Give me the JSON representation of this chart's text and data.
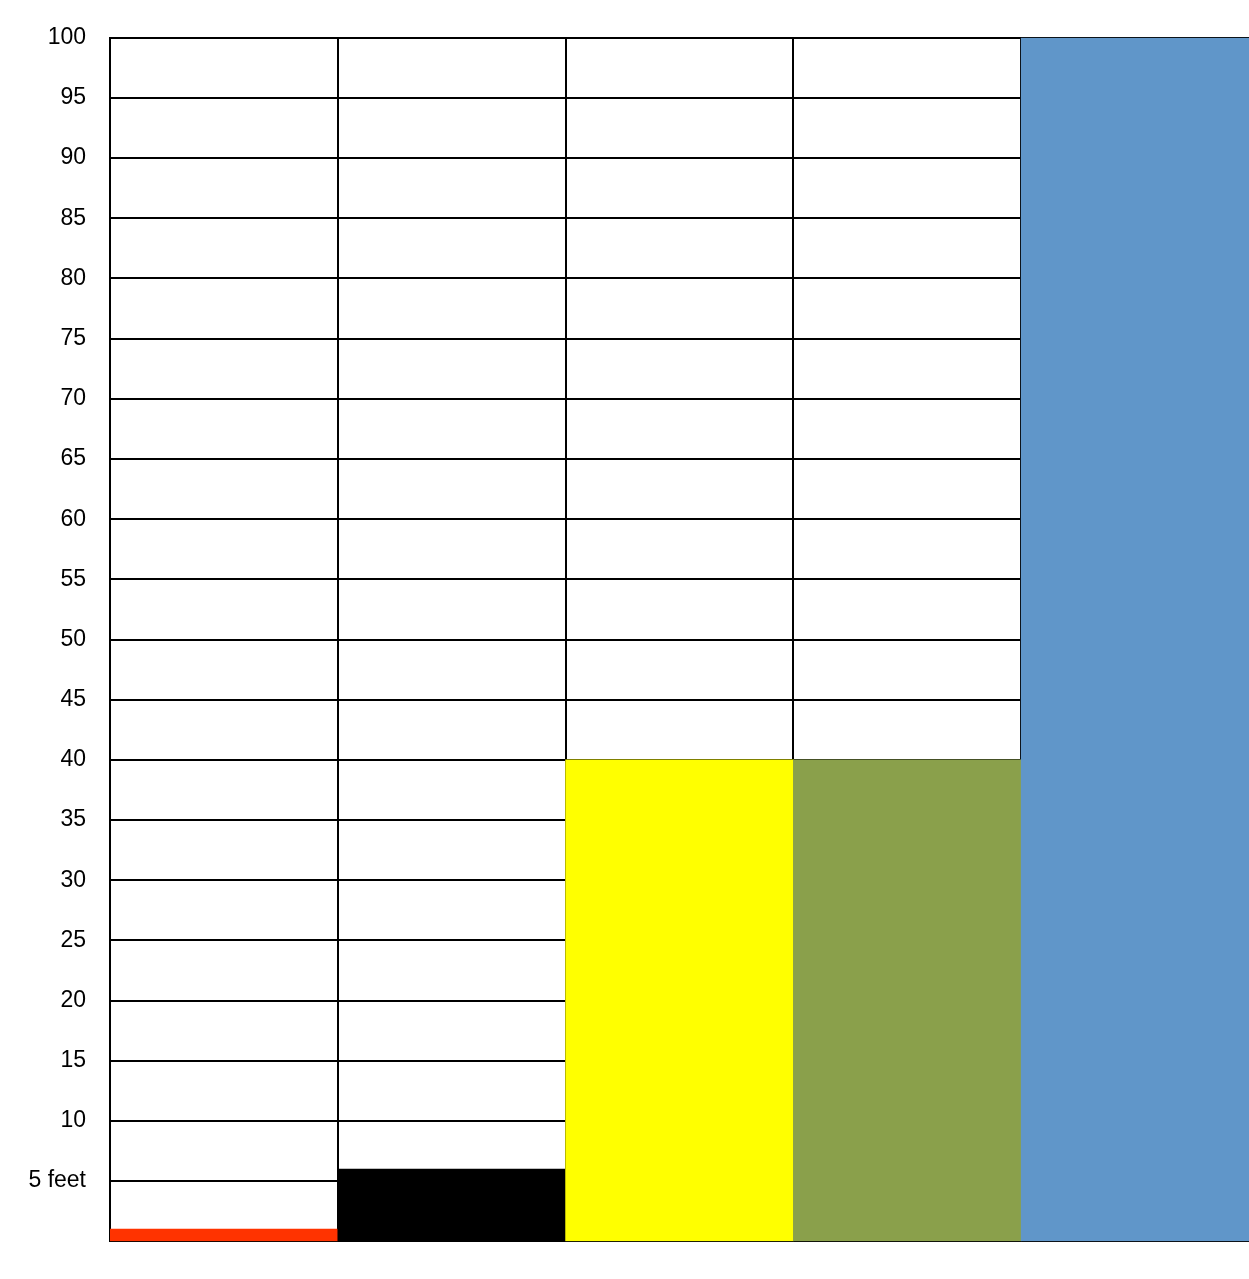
{
  "chart_data": {
    "type": "bar",
    "categories": [
      null,
      null,
      null,
      null,
      null
    ],
    "values": [
      1,
      6,
      40,
      40,
      100
    ],
    "colors": [
      "#ff3300",
      "#000000",
      "#ffff00",
      "#8aa04b",
      "#6096c9"
    ],
    "ylim": [
      0,
      100
    ],
    "yticks": [
      {
        "value": 5,
        "label": "5 feet"
      },
      10,
      15,
      20,
      25,
      30,
      35,
      40,
      45,
      50,
      55,
      60,
      65,
      70,
      75,
      80,
      85,
      90,
      95,
      100
    ],
    "grid": true
  }
}
